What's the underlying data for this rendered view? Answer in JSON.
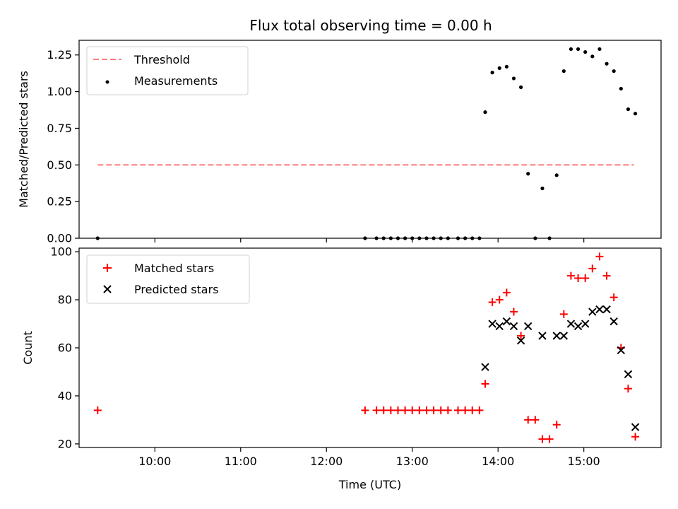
{
  "figure": {
    "title": "Flux total observing time = 0.00 h",
    "xlabel": "Time (UTC)",
    "x_tick_labels": [
      "10:00",
      "11:00",
      "12:00",
      "13:00",
      "14:00",
      "15:00"
    ]
  },
  "colors": {
    "threshold": "#ff7f7f",
    "measurements": "#000000",
    "matched": "#ff0000",
    "predicted": "#000000"
  },
  "chart_data": [
    {
      "type": "scatter",
      "name": "ratio",
      "ylabel": "Matched/Predicted stars",
      "xlim": [
        "09:07",
        "15:54"
      ],
      "ylim": [
        0,
        1.35
      ],
      "y_ticks": [
        0.0,
        0.25,
        0.5,
        0.75,
        1.0,
        1.25
      ],
      "y_tick_labels": [
        "0.00",
        "0.25",
        "0.50",
        "0.75",
        "1.00",
        "1.25"
      ],
      "legend": {
        "placement": "top-left",
        "entries": [
          "Threshold",
          "Measurements"
        ]
      },
      "threshold": {
        "name": "Threshold",
        "value": 0.5,
        "x_range": [
          "09:20",
          "15:35"
        ]
      },
      "series": [
        {
          "name": "Measurements",
          "marker": "dot",
          "points": [
            {
              "x": "09:20",
              "y": 0.0
            },
            {
              "x": "12:27",
              "y": 0.0
            },
            {
              "x": "12:35",
              "y": 0.0
            },
            {
              "x": "12:40",
              "y": 0.0
            },
            {
              "x": "12:45",
              "y": 0.0
            },
            {
              "x": "12:50",
              "y": 0.0
            },
            {
              "x": "12:55",
              "y": 0.0
            },
            {
              "x": "13:00",
              "y": 0.0
            },
            {
              "x": "13:05",
              "y": 0.0
            },
            {
              "x": "13:10",
              "y": 0.0
            },
            {
              "x": "13:15",
              "y": 0.0
            },
            {
              "x": "13:20",
              "y": 0.0
            },
            {
              "x": "13:25",
              "y": 0.0
            },
            {
              "x": "13:32",
              "y": 0.0
            },
            {
              "x": "13:37",
              "y": 0.0
            },
            {
              "x": "13:42",
              "y": 0.0
            },
            {
              "x": "13:47",
              "y": 0.0
            },
            {
              "x": "13:51",
              "y": 0.86
            },
            {
              "x": "13:56",
              "y": 1.13
            },
            {
              "x": "14:01",
              "y": 1.16
            },
            {
              "x": "14:06",
              "y": 1.17
            },
            {
              "x": "14:11",
              "y": 1.09
            },
            {
              "x": "14:16",
              "y": 1.03
            },
            {
              "x": "14:21",
              "y": 0.44
            },
            {
              "x": "14:26",
              "y": 0.0
            },
            {
              "x": "14:31",
              "y": 0.34
            },
            {
              "x": "14:36",
              "y": 0.0
            },
            {
              "x": "14:41",
              "y": 0.43
            },
            {
              "x": "14:46",
              "y": 1.14
            },
            {
              "x": "14:51",
              "y": 1.29
            },
            {
              "x": "14:56",
              "y": 1.29
            },
            {
              "x": "15:01",
              "y": 1.27
            },
            {
              "x": "15:06",
              "y": 1.24
            },
            {
              "x": "15:11",
              "y": 1.29
            },
            {
              "x": "15:16",
              "y": 1.19
            },
            {
              "x": "15:21",
              "y": 1.14
            },
            {
              "x": "15:26",
              "y": 1.02
            },
            {
              "x": "15:31",
              "y": 0.88
            },
            {
              "x": "15:36",
              "y": 0.85
            }
          ]
        }
      ]
    },
    {
      "type": "scatter",
      "name": "counts",
      "ylabel": "Count",
      "xlim": [
        "09:07",
        "15:54"
      ],
      "ylim": [
        18.5,
        101.5
      ],
      "y_ticks": [
        20,
        40,
        60,
        80,
        100
      ],
      "y_tick_labels": [
        "20",
        "40",
        "60",
        "80",
        "100"
      ],
      "legend": {
        "placement": "top-left",
        "entries": [
          "Matched stars",
          "Predicted stars"
        ]
      },
      "series": [
        {
          "name": "Matched stars",
          "marker": "plus",
          "points": [
            {
              "x": "09:20",
              "y": 34
            },
            {
              "x": "12:27",
              "y": 34
            },
            {
              "x": "12:35",
              "y": 34
            },
            {
              "x": "12:40",
              "y": 34
            },
            {
              "x": "12:45",
              "y": 34
            },
            {
              "x": "12:50",
              "y": 34
            },
            {
              "x": "12:55",
              "y": 34
            },
            {
              "x": "13:00",
              "y": 34
            },
            {
              "x": "13:05",
              "y": 34
            },
            {
              "x": "13:10",
              "y": 34
            },
            {
              "x": "13:15",
              "y": 34
            },
            {
              "x": "13:20",
              "y": 34
            },
            {
              "x": "13:25",
              "y": 34
            },
            {
              "x": "13:32",
              "y": 34
            },
            {
              "x": "13:37",
              "y": 34
            },
            {
              "x": "13:42",
              "y": 34
            },
            {
              "x": "13:47",
              "y": 34
            },
            {
              "x": "13:51",
              "y": 45
            },
            {
              "x": "13:56",
              "y": 79
            },
            {
              "x": "14:01",
              "y": 80
            },
            {
              "x": "14:06",
              "y": 83
            },
            {
              "x": "14:11",
              "y": 75
            },
            {
              "x": "14:16",
              "y": 65
            },
            {
              "x": "14:21",
              "y": 30
            },
            {
              "x": "14:26",
              "y": 30
            },
            {
              "x": "14:31",
              "y": 22
            },
            {
              "x": "14:36",
              "y": 22
            },
            {
              "x": "14:41",
              "y": 28
            },
            {
              "x": "14:46",
              "y": 74
            },
            {
              "x": "14:51",
              "y": 90
            },
            {
              "x": "14:56",
              "y": 89
            },
            {
              "x": "15:01",
              "y": 89
            },
            {
              "x": "15:06",
              "y": 93
            },
            {
              "x": "15:11",
              "y": 98
            },
            {
              "x": "15:16",
              "y": 90
            },
            {
              "x": "15:21",
              "y": 81
            },
            {
              "x": "15:26",
              "y": 60
            },
            {
              "x": "15:31",
              "y": 43
            },
            {
              "x": "15:36",
              "y": 23
            }
          ]
        },
        {
          "name": "Predicted stars",
          "marker": "x",
          "points": [
            {
              "x": "13:51",
              "y": 52
            },
            {
              "x": "13:56",
              "y": 70
            },
            {
              "x": "14:01",
              "y": 69
            },
            {
              "x": "14:06",
              "y": 71
            },
            {
              "x": "14:11",
              "y": 69
            },
            {
              "x": "14:16",
              "y": 63
            },
            {
              "x": "14:21",
              "y": 69
            },
            {
              "x": "14:31",
              "y": 65
            },
            {
              "x": "14:41",
              "y": 65
            },
            {
              "x": "14:46",
              "y": 65
            },
            {
              "x": "14:51",
              "y": 70
            },
            {
              "x": "14:56",
              "y": 69
            },
            {
              "x": "15:01",
              "y": 70
            },
            {
              "x": "15:06",
              "y": 75
            },
            {
              "x": "15:11",
              "y": 76
            },
            {
              "x": "15:16",
              "y": 76
            },
            {
              "x": "15:21",
              "y": 71
            },
            {
              "x": "15:26",
              "y": 59
            },
            {
              "x": "15:31",
              "y": 49
            },
            {
              "x": "15:36",
              "y": 27
            }
          ]
        }
      ]
    }
  ]
}
